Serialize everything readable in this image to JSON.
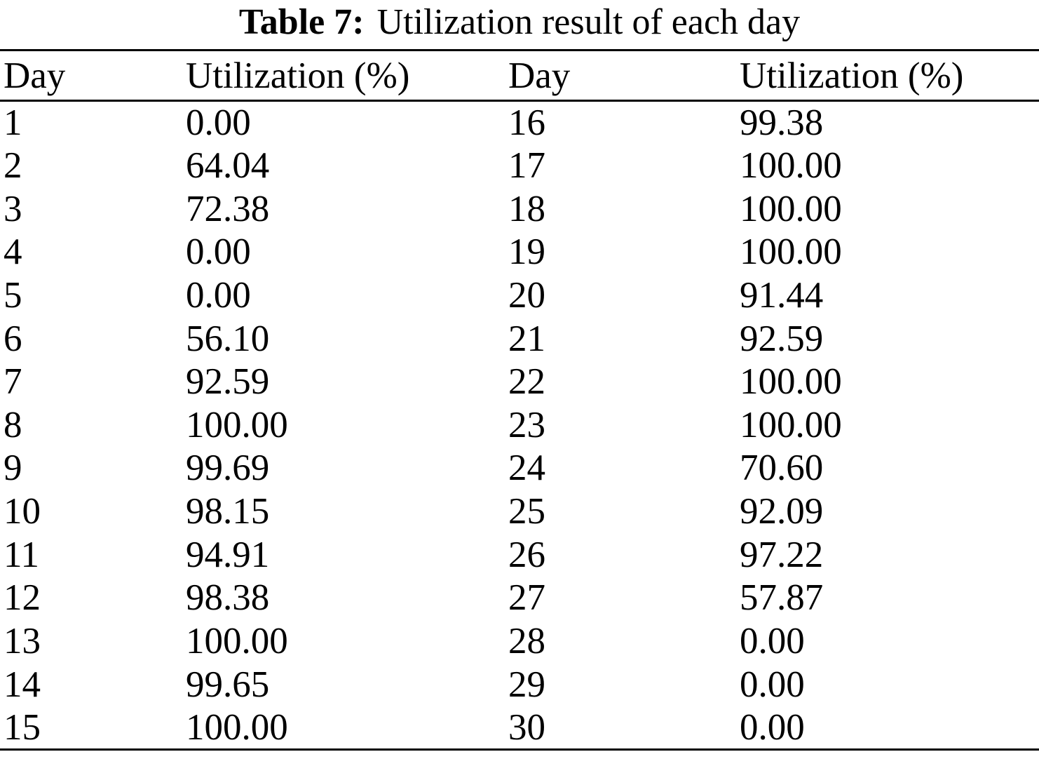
{
  "page": {
    "caption_label": "Table 7:",
    "caption_text": "Utilization result of each day"
  },
  "table": {
    "headers": [
      "Day",
      "Utilization (%)",
      "Day",
      "Utilization (%)"
    ],
    "rows": [
      [
        "1",
        "0.00",
        "16",
        "99.38"
      ],
      [
        "2",
        "64.04",
        "17",
        "100.00"
      ],
      [
        "3",
        "72.38",
        "18",
        "100.00"
      ],
      [
        "4",
        "0.00",
        "19",
        "100.00"
      ],
      [
        "5",
        "0.00",
        "20",
        "91.44"
      ],
      [
        "6",
        "56.10",
        "21",
        "92.59"
      ],
      [
        "7",
        "92.59",
        "22",
        "100.00"
      ],
      [
        "8",
        "100.00",
        "23",
        "100.00"
      ],
      [
        "9",
        "99.69",
        "24",
        "70.60"
      ],
      [
        "10",
        "98.15",
        "25",
        "92.09"
      ],
      [
        "11",
        "94.91",
        "26",
        "97.22"
      ],
      [
        "12",
        "98.38",
        "27",
        "57.87"
      ],
      [
        "13",
        "100.00",
        "28",
        "0.00"
      ],
      [
        "14",
        "99.65",
        "29",
        "0.00"
      ],
      [
        "15",
        "100.00",
        "30",
        "0.00"
      ]
    ]
  },
  "colors": {
    "text": "#000000",
    "background": "#ffffff",
    "rule": "#000000"
  }
}
